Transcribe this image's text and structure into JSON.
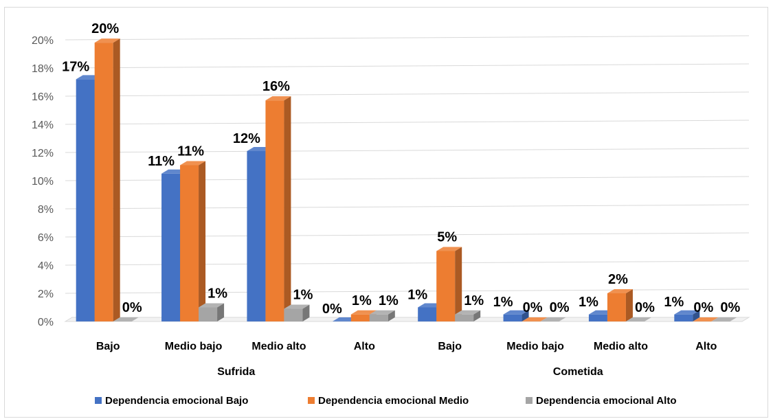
{
  "chart_data": {
    "type": "bar",
    "title": "",
    "xlabel": "",
    "ylabel": "",
    "ylim": [
      0,
      0.2
    ],
    "yticks": [
      "0%",
      "2%",
      "4%",
      "6%",
      "8%",
      "10%",
      "12%",
      "14%",
      "16%",
      "18%",
      "20%"
    ],
    "grid": true,
    "legend_position": "bottom",
    "groups": [
      "Sufrida",
      "Cometida"
    ],
    "categories": [
      "Bajo",
      "Medio bajo",
      "Medio alto",
      "Alto",
      "Bajo",
      "Medio bajo",
      "Medio alto",
      "Alto"
    ],
    "series": [
      {
        "name": "Dependencia emocional Bajo",
        "color": "#4472c4",
        "values": [
          0.172,
          0.105,
          0.121,
          0.0,
          0.01,
          0.005,
          0.005,
          0.005
        ],
        "labels": [
          "17%",
          "11%",
          "12%",
          "0%",
          "1%",
          "1%",
          "1%",
          "1%"
        ]
      },
      {
        "name": "Dependencia emocional Medio",
        "color": "#ed7d31",
        "values": [
          0.198,
          0.111,
          0.157,
          0.005,
          0.05,
          0.0,
          0.02,
          0.0
        ],
        "labels": [
          "20%",
          "11%",
          "16%",
          "1%",
          "5%",
          "0%",
          "2%",
          "0%"
        ]
      },
      {
        "name": "Dependencia emocional Alto",
        "color": "#a5a5a5",
        "values": [
          0.0,
          0.01,
          0.009,
          0.005,
          0.005,
          0.0,
          0.0,
          0.0
        ],
        "labels": [
          "0%",
          "1%",
          "1%",
          "1%",
          "1%",
          "0%",
          "0%",
          "0%"
        ]
      }
    ]
  }
}
